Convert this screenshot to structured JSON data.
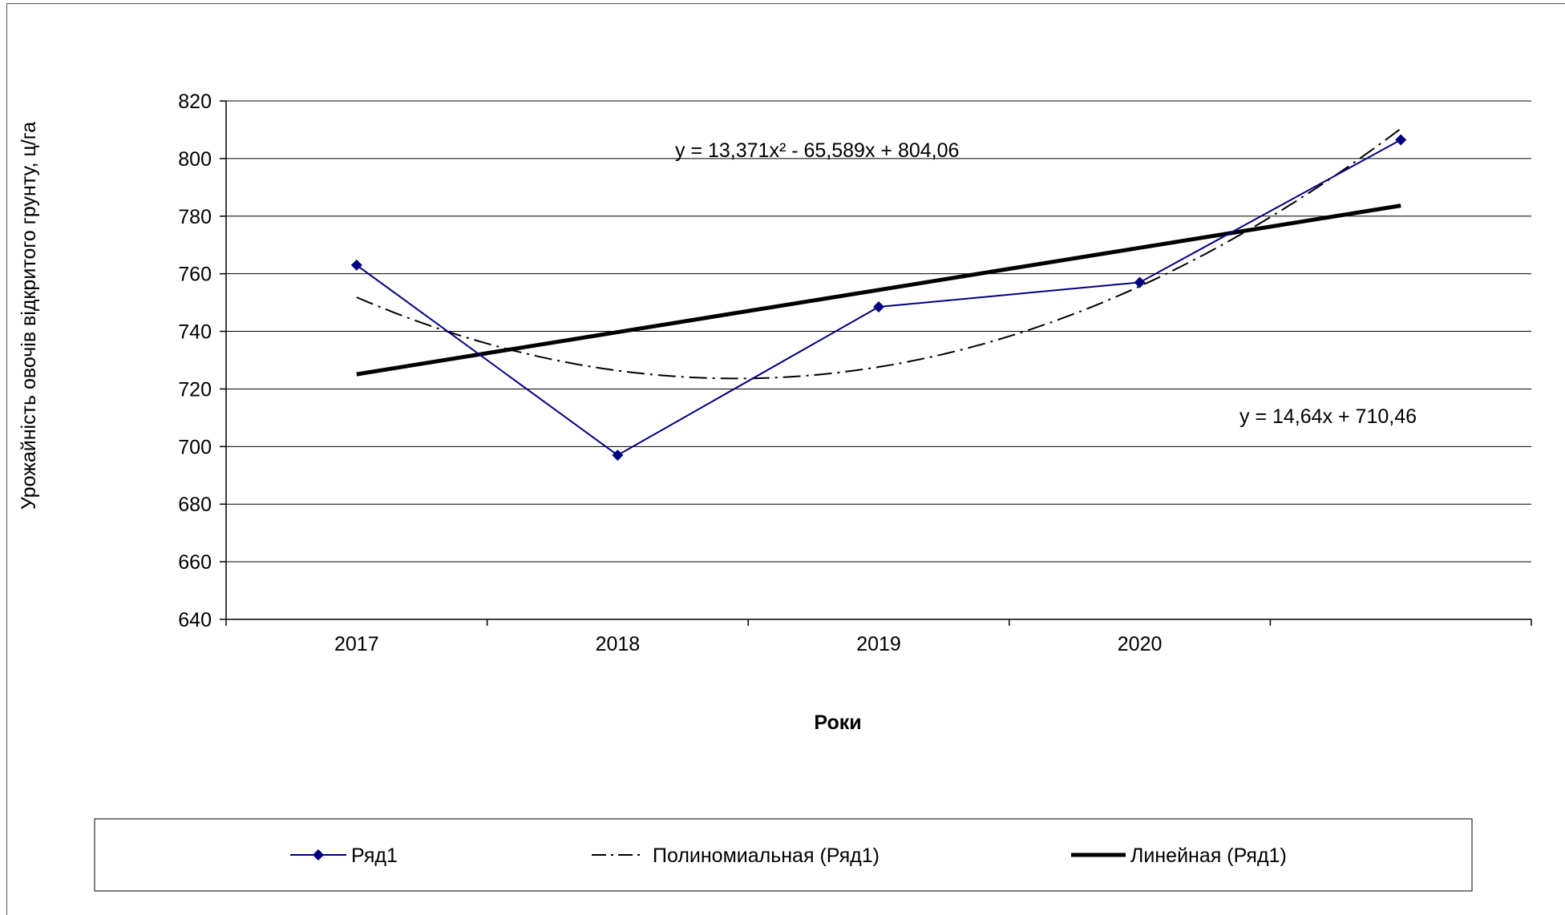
{
  "chart_data": {
    "type": "line",
    "categories": [
      "2017",
      "2018",
      "2019",
      "2020",
      ""
    ],
    "x": [
      1,
      2,
      3,
      4,
      5
    ],
    "series": [
      {
        "name": "Ряд1",
        "values": [
          763,
          697,
          748.5,
          757,
          806.5
        ],
        "color": "#000080",
        "marker": "diamond",
        "style": "solid-thin"
      }
    ],
    "trendlines": [
      {
        "name": "Полиномиальная (Ряд1)",
        "type": "polynomial",
        "coefficients": [
          13.371,
          -65.589,
          804.06
        ],
        "equation": "y = 13,371x² - 65,589x + 804,06",
        "color": "#000000",
        "style": "dash-dot"
      },
      {
        "name": "Линейная (Ряд1)",
        "type": "linear",
        "coefficients": [
          14.64,
          710.46
        ],
        "equation": "y = 14,64x + 710,46",
        "color": "#000000",
        "style": "solid-thick"
      }
    ],
    "title": "",
    "xlabel": "Роки",
    "ylabel": "Урожайність овочів відкритого грунту, ц/га",
    "ylim": [
      640,
      820
    ],
    "yticks": [
      640,
      660,
      680,
      700,
      720,
      740,
      760,
      780,
      800,
      820
    ],
    "grid": true,
    "legend_position": "bottom"
  }
}
